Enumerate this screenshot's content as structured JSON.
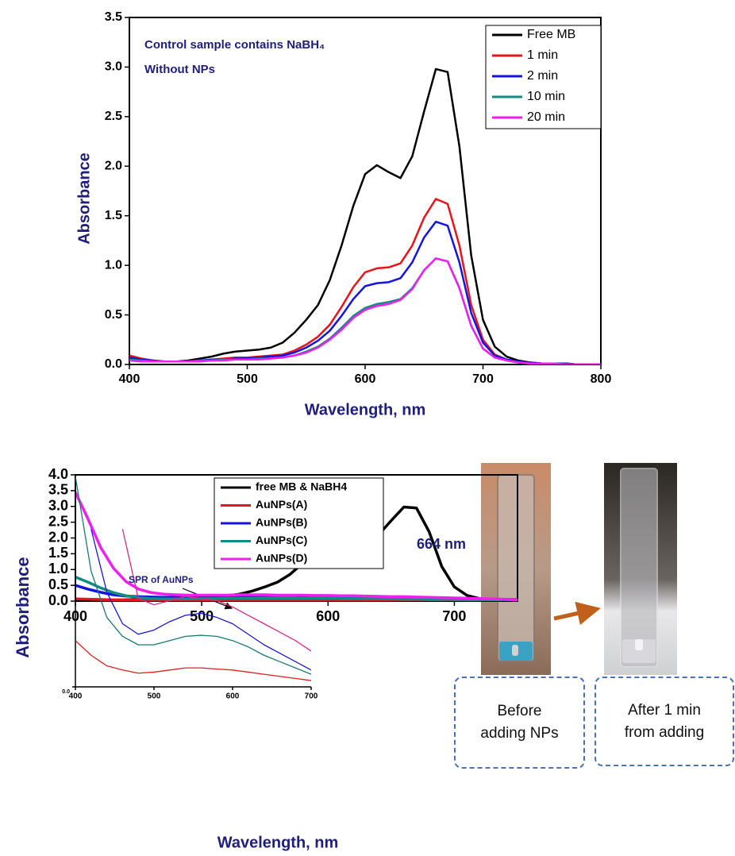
{
  "chart_data": [
    {
      "type": "line",
      "x_label": "Wavelength, nm",
      "y_label": "Absorbance",
      "annotations": [
        "Control sample contains NaBH₄",
        "Without NPs"
      ],
      "x": [
        400,
        410,
        420,
        430,
        440,
        450,
        460,
        470,
        480,
        490,
        500,
        510,
        520,
        530,
        540,
        550,
        560,
        570,
        580,
        590,
        600,
        610,
        620,
        630,
        640,
        650,
        660,
        670,
        680,
        690,
        700,
        710,
        720,
        730,
        740,
        750,
        760,
        770,
        780,
        790,
        800
      ],
      "series": [
        {
          "name": "Free MB",
          "color": "#000000",
          "values": [
            0.05,
            0.04,
            0.03,
            0.03,
            0.03,
            0.04,
            0.06,
            0.08,
            0.11,
            0.13,
            0.14,
            0.15,
            0.17,
            0.22,
            0.32,
            0.45,
            0.6,
            0.85,
            1.2,
            1.6,
            1.92,
            2.01,
            1.94,
            1.88,
            2.1,
            2.55,
            2.98,
            2.95,
            2.2,
            1.1,
            0.45,
            0.18,
            0.08,
            0.04,
            0.02,
            0.01,
            0.01,
            0.01,
            0.0,
            0.0,
            0.0
          ]
        },
        {
          "name": "1 min",
          "color": "#e8141b",
          "values": [
            0.09,
            0.06,
            0.04,
            0.03,
            0.03,
            0.03,
            0.04,
            0.05,
            0.06,
            0.07,
            0.07,
            0.08,
            0.09,
            0.1,
            0.14,
            0.2,
            0.28,
            0.4,
            0.58,
            0.78,
            0.93,
            0.97,
            0.98,
            1.02,
            1.2,
            1.48,
            1.67,
            1.62,
            1.2,
            0.6,
            0.25,
            0.1,
            0.05,
            0.03,
            0.02,
            0.01,
            0.01,
            0.01,
            0.0,
            0.0,
            0.0
          ]
        },
        {
          "name": "2 min",
          "color": "#1414e0",
          "values": [
            0.07,
            0.05,
            0.04,
            0.03,
            0.03,
            0.03,
            0.04,
            0.05,
            0.05,
            0.06,
            0.06,
            0.07,
            0.08,
            0.09,
            0.12,
            0.17,
            0.24,
            0.34,
            0.49,
            0.66,
            0.79,
            0.82,
            0.83,
            0.87,
            1.03,
            1.28,
            1.44,
            1.4,
            1.03,
            0.52,
            0.22,
            0.09,
            0.05,
            0.03,
            0.02,
            0.01,
            0.01,
            0.01,
            0.0,
            0.0,
            0.0
          ]
        },
        {
          "name": "10 min",
          "color": "#138a84",
          "values": [
            0.05,
            0.04,
            0.03,
            0.03,
            0.03,
            0.03,
            0.04,
            0.04,
            0.05,
            0.05,
            0.05,
            0.06,
            0.06,
            0.07,
            0.09,
            0.13,
            0.18,
            0.26,
            0.37,
            0.49,
            0.57,
            0.61,
            0.63,
            0.66,
            0.77,
            0.95,
            1.07,
            1.04,
            0.77,
            0.39,
            0.16,
            0.07,
            0.04,
            0.02,
            0.01,
            0.01,
            0.01,
            0.0,
            0.0,
            0.0,
            0.0
          ]
        },
        {
          "name": "20 min",
          "color": "#f01ef0",
          "values": [
            0.04,
            0.03,
            0.03,
            0.03,
            0.03,
            0.03,
            0.03,
            0.04,
            0.04,
            0.05,
            0.05,
            0.05,
            0.06,
            0.07,
            0.09,
            0.12,
            0.17,
            0.25,
            0.35,
            0.47,
            0.55,
            0.59,
            0.61,
            0.65,
            0.76,
            0.95,
            1.07,
            1.04,
            0.77,
            0.39,
            0.16,
            0.07,
            0.04,
            0.02,
            0.01,
            0.01,
            0.01,
            0.0,
            0.0,
            0.0,
            0.0
          ]
        }
      ],
      "xlim": [
        400,
        800
      ],
      "xticks": [
        400,
        500,
        600,
        700,
        800
      ],
      "ylim": [
        0,
        3.5
      ],
      "yticks": [
        {
          "value": 0,
          "label": "0.0"
        },
        0.5,
        {
          "value": 1,
          "label": "1.0"
        },
        1.5,
        {
          "value": 2,
          "label": "2.0"
        },
        2.5,
        {
          "value": 3,
          "label": "3.0"
        },
        3.5
      ],
      "grid": false,
      "legend": "upper right"
    },
    {
      "type": "line",
      "x_label": "Wavelength, nm",
      "y_label": "Absorbance",
      "annotations": [
        "664 nm"
      ],
      "x": [
        400,
        410,
        420,
        430,
        440,
        450,
        460,
        470,
        480,
        490,
        500,
        510,
        520,
        530,
        540,
        550,
        560,
        570,
        580,
        590,
        600,
        610,
        620,
        630,
        640,
        650,
        660,
        670,
        680,
        690,
        700,
        710,
        720,
        730,
        740,
        750
      ],
      "series": [
        {
          "name": "free MB & NaBH4",
          "color": "#000000",
          "values": [
            0.03,
            0.03,
            0.03,
            0.03,
            0.04,
            0.05,
            0.07,
            0.09,
            0.11,
            0.13,
            0.14,
            0.15,
            0.17,
            0.22,
            0.32,
            0.45,
            0.6,
            0.85,
            1.2,
            1.6,
            1.92,
            2.01,
            1.94,
            1.88,
            2.1,
            2.55,
            2.98,
            2.95,
            2.2,
            1.1,
            0.45,
            0.18,
            0.08,
            0.04,
            0.02,
            0.01
          ]
        },
        {
          "name": "AuNPs(A)",
          "color": "#e8141b",
          "values": [
            0.07,
            0.06,
            0.05,
            0.04,
            0.03,
            0.03,
            0.03,
            0.03,
            0.03,
            0.03,
            0.03,
            0.03,
            0.04,
            0.04,
            0.04,
            0.04,
            0.04,
            0.04,
            0.04,
            0.04,
            0.04,
            0.04,
            0.04,
            0.03,
            0.03,
            0.03,
            0.03,
            0.03,
            0.03,
            0.03,
            0.02,
            0.02,
            0.02,
            0.02,
            0.02,
            0.02
          ]
        },
        {
          "name": "AuNPs(B)",
          "color": "#1414e0",
          "values": [
            0.5,
            0.38,
            0.28,
            0.2,
            0.16,
            0.14,
            0.13,
            0.12,
            0.12,
            0.13,
            0.14,
            0.15,
            0.16,
            0.17,
            0.17,
            0.18,
            0.18,
            0.18,
            0.17,
            0.17,
            0.16,
            0.15,
            0.14,
            0.13,
            0.12,
            0.11,
            0.1,
            0.09,
            0.08,
            0.08,
            0.07,
            0.07,
            0.06,
            0.06,
            0.05,
            0.05
          ]
        },
        {
          "name": "AuNPs(C)",
          "color": "#138a84",
          "values": [
            0.76,
            0.6,
            0.42,
            0.27,
            0.17,
            0.11,
            0.08,
            0.07,
            0.07,
            0.07,
            0.08,
            0.08,
            0.09,
            0.09,
            0.09,
            0.09,
            0.09,
            0.09,
            0.09,
            0.09,
            0.09,
            0.08,
            0.08,
            0.08,
            0.07,
            0.07,
            0.06,
            0.06,
            0.05,
            0.05,
            0.05,
            0.04,
            0.04,
            0.04,
            0.03,
            0.03
          ]
        },
        {
          "name": "AuNPs(D)",
          "color": "#f01ef0",
          "values": [
            3.45,
            2.6,
            1.7,
            1.05,
            0.62,
            0.38,
            0.27,
            0.22,
            0.2,
            0.19,
            0.19,
            0.19,
            0.19,
            0.2,
            0.2,
            0.2,
            0.19,
            0.19,
            0.19,
            0.18,
            0.18,
            0.17,
            0.17,
            0.16,
            0.15,
            0.14,
            0.14,
            0.13,
            0.12,
            0.11,
            0.1,
            0.09,
            0.08,
            0.07,
            0.06,
            0.04
          ]
        }
      ],
      "xlim": [
        400,
        750
      ],
      "xticks": [
        400,
        500,
        600,
        700
      ],
      "ylim": [
        0,
        4
      ],
      "yticks": [
        {
          "value": 0,
          "label": "0.0"
        },
        0.5,
        {
          "value": 1,
          "label": "1.0"
        },
        1.5,
        {
          "value": 2,
          "label": "2.0"
        },
        2.5,
        {
          "value": 3,
          "label": "3.0"
        },
        3.5,
        {
          "value": 4,
          "label": "4.0"
        }
      ],
      "grid": false,
      "legend": "upper center"
    },
    {
      "type": "line",
      "annotations": [
        "SPR of AuNPs"
      ],
      "x": [
        400,
        420,
        440,
        460,
        480,
        500,
        520,
        540,
        560,
        580,
        600,
        620,
        640,
        660,
        680,
        700
      ],
      "series": [
        {
          "color": "#e02020",
          "values": [
            0.22,
            0.15,
            0.1,
            0.08,
            0.065,
            0.07,
            0.08,
            0.09,
            0.09,
            0.085,
            0.08,
            0.07,
            0.06,
            0.05,
            0.04,
            0.03
          ]
        },
        {
          "color": "#1a1ad0",
          "values": [
            null,
            0.75,
            0.45,
            0.3,
            0.25,
            0.27,
            0.31,
            0.34,
            0.35,
            0.33,
            0.3,
            0.25,
            0.2,
            0.16,
            0.12,
            0.08
          ]
        },
        {
          "color": "#1a7a70",
          "values": [
            1.0,
            0.55,
            0.33,
            0.24,
            0.2,
            0.2,
            0.22,
            0.24,
            0.245,
            0.24,
            0.22,
            0.19,
            0.15,
            0.12,
            0.09,
            0.06
          ]
        },
        {
          "color": "#d82a8c",
          "values": [
            null,
            null,
            null,
            0.75,
            0.42,
            0.39,
            0.41,
            0.43,
            0.42,
            0.41,
            0.38,
            0.34,
            0.3,
            0.26,
            0.22,
            0.17
          ]
        }
      ],
      "xlim": [
        400,
        700
      ],
      "xticks": [
        400,
        500,
        600,
        700
      ],
      "ylim": [
        0,
        1
      ],
      "yticks": [
        {
          "value": 0,
          "label": "0.0"
        }
      ],
      "grid": false
    }
  ],
  "photos": [
    {
      "caption": "Before adding NPs"
    },
    {
      "caption": "After 1 min from adding"
    }
  ]
}
